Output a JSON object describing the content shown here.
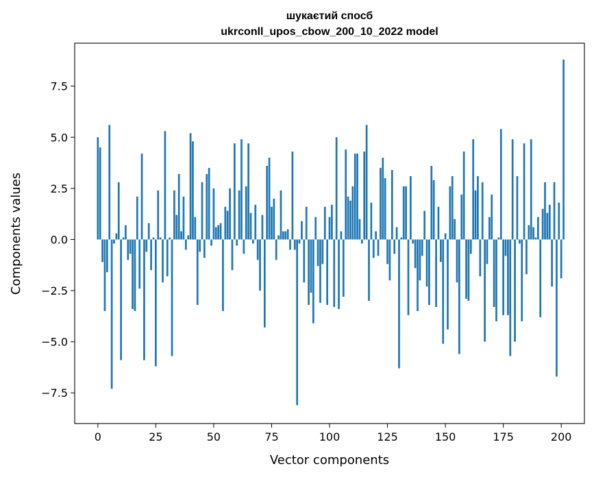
{
  "chart_data": {
    "type": "bar",
    "title": "шукаєтий спосб",
    "subtitle": "ukrconll_upos_cbow_200_10_2022 model",
    "xlabel": "Vector components",
    "ylabel": "Components values",
    "xlim": [
      -10,
      210
    ],
    "ylim": [
      -9,
      9.6
    ],
    "xticks": [
      0,
      25,
      50,
      75,
      100,
      125,
      150,
      175,
      200
    ],
    "yticks": [
      -7.5,
      -5.0,
      -2.5,
      0.0,
      2.5,
      5.0,
      7.5
    ],
    "ytick_labels": [
      "−7.5",
      "−5.0",
      "−2.5",
      "0.0",
      "2.5",
      "5.0",
      "7.5"
    ],
    "grid": false,
    "bar_color": "#1f77b4",
    "values": [
      5.0,
      4.5,
      -1.1,
      -3.5,
      -1.6,
      5.6,
      -7.3,
      -0.2,
      0.3,
      2.8,
      -5.9,
      0.1,
      0.7,
      -1.0,
      -0.7,
      -3.4,
      -3.5,
      2.1,
      -2.4,
      4.2,
      -5.9,
      -0.6,
      0.8,
      -1.5,
      0.1,
      -6.2,
      2.4,
      0.1,
      -2.1,
      5.3,
      -1.8,
      0.1,
      -5.7,
      2.4,
      1.2,
      3.2,
      0.4,
      2.1,
      -0.5,
      0.2,
      5.2,
      4.8,
      1.1,
      -3.2,
      -0.6,
      2.8,
      -0.9,
      3.2,
      3.5,
      -0.3,
      2.5,
      0.6,
      0.7,
      0.8,
      -3.5,
      1.6,
      1.4,
      2.5,
      -1.5,
      4.7,
      -0.3,
      2.4,
      4.9,
      -0.7,
      2.6,
      4.7,
      1.3,
      -0.2,
      1.7,
      -1.0,
      -2.5,
      1.2,
      -4.3,
      3.6,
      4.0,
      1.6,
      2.0,
      -1.0,
      0.2,
      2.4,
      0.4,
      0.4,
      0.5,
      -0.5,
      4.3,
      -0.5,
      -8.1,
      -0.2,
      0.9,
      -2.1,
      1.6,
      -3.2,
      -2.6,
      -4.1,
      1.1,
      -1.3,
      -3.1,
      -1.2,
      1.6,
      -3.2,
      1.1,
      1.7,
      -3.3,
      5.0,
      -3.4,
      0.4,
      -2.8,
      4.4,
      2.1,
      1.9,
      2.6,
      4.2,
      4.2,
      1.0,
      -0.2,
      4.3,
      5.6,
      -3.0,
      1.8,
      -0.9,
      0.4,
      -0.8,
      3.5,
      4.0,
      3.0,
      -1.2,
      -2.0,
      3.4,
      -0.7,
      0.6,
      -6.3,
      0.1,
      2.6,
      2.6,
      -3.7,
      3.1,
      -0.2,
      -1.4,
      -3.5,
      -2.0,
      -0.8,
      1.4,
      -2.3,
      -3.2,
      3.6,
      2.9,
      -3.3,
      1.6,
      -1.1,
      -5.1,
      0.3,
      -4.4,
      2.6,
      3.1,
      1.0,
      -2.1,
      -5.6,
      2.2,
      4.3,
      -2.9,
      -3.0,
      -0.7,
      4.9,
      2.4,
      3.1,
      -1.8,
      2.8,
      -5.0,
      -1.2,
      1.1,
      2.2,
      -3.3,
      -4.0,
      0.1,
      5.4,
      -3.7,
      -0.8,
      -3.7,
      -5.7,
      4.9,
      -5.0,
      3.1,
      -0.2,
      -4.0,
      4.7,
      -1.7,
      0.7,
      4.9,
      0.6,
      0.1,
      1.1,
      -3.8,
      1.5,
      2.8,
      1.3,
      1.7,
      -2.3,
      2.8,
      -6.7,
      1.8,
      -1.9,
      8.8
    ]
  }
}
